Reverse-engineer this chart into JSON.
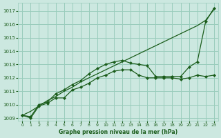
{
  "background_color": "#cce8e0",
  "grid_color": "#99ccbb",
  "line_color": "#1a5c1a",
  "title": "Graphe pression niveau de la mer (hPa)",
  "xlim": [
    -0.5,
    23.5
  ],
  "ylim": [
    1008.8,
    1017.6
  ],
  "yticks": [
    1009,
    1010,
    1011,
    1012,
    1013,
    1014,
    1015,
    1016,
    1017
  ],
  "xticks": [
    0,
    1,
    2,
    3,
    4,
    5,
    6,
    7,
    8,
    9,
    10,
    11,
    12,
    13,
    14,
    15,
    16,
    17,
    18,
    19,
    20,
    21,
    22,
    23
  ],
  "series_straight": [
    1009.2,
    1009.5,
    1009.9,
    1010.3,
    1010.6,
    1011.0,
    1011.3,
    1011.7,
    1012.0,
    1012.3,
    1012.6,
    1012.9,
    1013.2,
    1013.5,
    1013.8,
    1014.1,
    1014.4,
    1014.7,
    1015.0,
    1015.3,
    1015.6,
    1015.9,
    1016.3,
    1017.1
  ],
  "series_upper": [
    1009.2,
    1009.1,
    1010.0,
    1010.2,
    1010.8,
    1011.1,
    1011.5,
    1011.8,
    1012.3,
    1012.7,
    1013.0,
    1013.2,
    1013.3,
    1013.1,
    1013.0,
    1012.9,
    1012.1,
    1012.1,
    1012.1,
    1012.1,
    1012.8,
    1013.2,
    1016.2,
    1017.2
  ],
  "series_lower": [
    1009.2,
    1009.0,
    1009.9,
    1010.1,
    1010.5,
    1010.5,
    1011.1,
    1011.3,
    1011.6,
    1012.0,
    1012.2,
    1012.5,
    1012.6,
    1012.6,
    1012.2,
    1012.0,
    1012.0,
    1012.0,
    1012.0,
    1011.9,
    1012.0,
    1012.2,
    1012.1,
    1012.2
  ],
  "marker": "D",
  "markersize": 2.2,
  "linewidth": 0.9
}
